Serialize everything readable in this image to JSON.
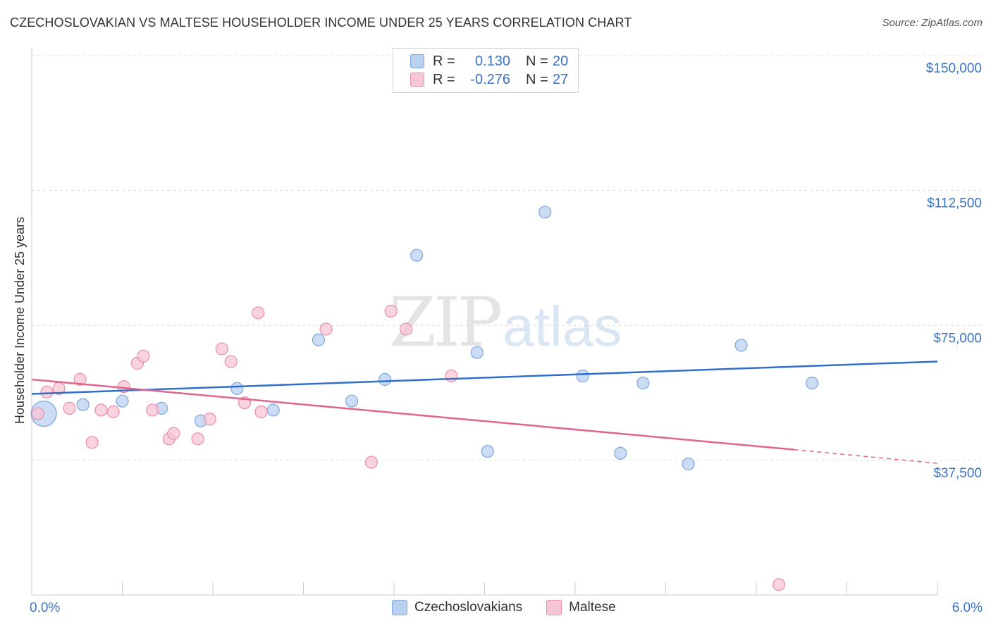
{
  "header": {
    "title": "CZECHOSLOVAKIAN VS MALTESE HOUSEHOLDER INCOME UNDER 25 YEARS CORRELATION CHART",
    "source": "Source: ZipAtlas.com"
  },
  "watermark": {
    "zip": "ZIP",
    "atlas": "atlas"
  },
  "legend": {
    "rows": [
      {
        "r_label": "R =",
        "r_value": "0.130",
        "n_label": "N =",
        "n_value": "20"
      },
      {
        "r_label": "R =",
        "r_value": "-0.276",
        "n_label": "N =",
        "n_value": "27"
      }
    ]
  },
  "bottom_legend": {
    "series1": "Czechoslovakians",
    "series2": "Maltese"
  },
  "colors": {
    "blue_fill": "#b9d0f0",
    "blue_stroke": "#7ea6db",
    "blue_line": "#2f6fcb",
    "pink_fill": "#f7c6d5",
    "pink_stroke": "#e88eab",
    "pink_line": "#e0648e",
    "tick_text": "#3a72c4",
    "grid": "#dddddd"
  },
  "chart_data": {
    "type": "scatter",
    "title": "CZECHOSLOVAKIAN VS MALTESE HOUSEHOLDER INCOME UNDER 25 YEARS CORRELATION CHART",
    "xlabel": "",
    "ylabel": "Householder Income Under 25 years",
    "xlim": [
      0,
      6
    ],
    "ylim": [
      0,
      155000
    ],
    "x_tick_labels": [
      "0.0%",
      "6.0%"
    ],
    "y_ticks": [
      37500,
      75000,
      112500,
      150000
    ],
    "y_tick_labels": [
      "$37,500",
      "$75,000",
      "$112,500",
      "$150,000"
    ],
    "series": [
      {
        "name": "Czechoslovakians",
        "r": 0.13,
        "n": 20,
        "trend": {
          "x": [
            0,
            6
          ],
          "y": [
            56000,
            65000
          ]
        },
        "points": [
          {
            "x": 0.08,
            "y": 50500,
            "big": true
          },
          {
            "x": 0.34,
            "y": 53000
          },
          {
            "x": 0.6,
            "y": 54000
          },
          {
            "x": 0.86,
            "y": 52000
          },
          {
            "x": 1.12,
            "y": 48500
          },
          {
            "x": 1.36,
            "y": 57500
          },
          {
            "x": 1.6,
            "y": 51500
          },
          {
            "x": 1.9,
            "y": 71000
          },
          {
            "x": 2.12,
            "y": 54000
          },
          {
            "x": 2.34,
            "y": 60000
          },
          {
            "x": 2.55,
            "y": 94500
          },
          {
            "x": 2.95,
            "y": 67500
          },
          {
            "x": 3.02,
            "y": 40000
          },
          {
            "x": 3.4,
            "y": 106500
          },
          {
            "x": 3.65,
            "y": 61000
          },
          {
            "x": 3.9,
            "y": 39500
          },
          {
            "x": 4.05,
            "y": 59000
          },
          {
            "x": 4.35,
            "y": 36500
          },
          {
            "x": 4.7,
            "y": 69500
          },
          {
            "x": 5.17,
            "y": 59000
          }
        ]
      },
      {
        "name": "Maltese",
        "r": -0.276,
        "n": 27,
        "trend": {
          "x": [
            0,
            5.05
          ],
          "y": [
            60000,
            40500
          ]
        },
        "trend_dashed": {
          "x": [
            5.05,
            6
          ],
          "y": [
            40500,
            36700
          ]
        },
        "points": [
          {
            "x": 0.04,
            "y": 50500
          },
          {
            "x": 0.1,
            "y": 56500
          },
          {
            "x": 0.18,
            "y": 57500
          },
          {
            "x": 0.25,
            "y": 52000
          },
          {
            "x": 0.32,
            "y": 60000
          },
          {
            "x": 0.4,
            "y": 42500
          },
          {
            "x": 0.46,
            "y": 51500
          },
          {
            "x": 0.54,
            "y": 51000
          },
          {
            "x": 0.61,
            "y": 58000
          },
          {
            "x": 0.7,
            "y": 64500
          },
          {
            "x": 0.74,
            "y": 66500
          },
          {
            "x": 0.8,
            "y": 51500
          },
          {
            "x": 0.91,
            "y": 43500
          },
          {
            "x": 0.94,
            "y": 45000
          },
          {
            "x": 1.1,
            "y": 43500
          },
          {
            "x": 1.18,
            "y": 49000
          },
          {
            "x": 1.26,
            "y": 68500
          },
          {
            "x": 1.32,
            "y": 65000
          },
          {
            "x": 1.41,
            "y": 53500
          },
          {
            "x": 1.5,
            "y": 78500
          },
          {
            "x": 1.52,
            "y": 51000
          },
          {
            "x": 1.95,
            "y": 74000
          },
          {
            "x": 2.25,
            "y": 37000
          },
          {
            "x": 2.38,
            "y": 79000
          },
          {
            "x": 2.48,
            "y": 74000
          },
          {
            "x": 2.78,
            "y": 61000
          },
          {
            "x": 4.95,
            "y": 3000
          }
        ]
      }
    ]
  }
}
